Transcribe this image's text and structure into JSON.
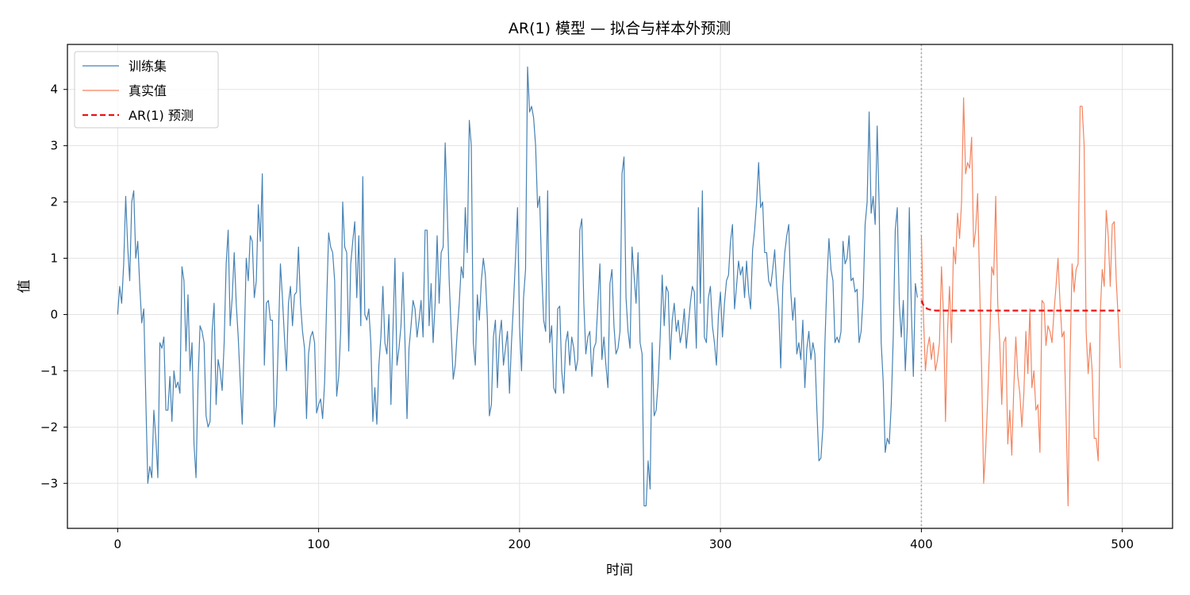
{
  "chart_data": {
    "type": "line",
    "title": "AR(1) 模型 — 拟合与样本外预测",
    "xlabel": "时间",
    "ylabel": "值",
    "xlim": [
      -25,
      525
    ],
    "ylim": [
      -3.8,
      4.8
    ],
    "xticks": [
      0,
      100,
      200,
      300,
      400,
      500
    ],
    "yticks": [
      -3,
      -2,
      -1,
      0,
      1,
      2,
      3,
      4
    ],
    "grid": true,
    "legend_position": "top-left",
    "split_line_x": 400,
    "series": [
      {
        "name": "训练集",
        "color": "#4682b4",
        "style": "solid",
        "x_start": 0,
        "values": [
          0.0,
          0.5,
          0.2,
          0.9,
          2.1,
          1.2,
          0.6,
          2.0,
          2.2,
          1.0,
          1.3,
          0.5,
          -0.15,
          0.1,
          -1.5,
          -3.0,
          -2.7,
          -2.9,
          -1.7,
          -2.2,
          -2.9,
          -0.5,
          -0.6,
          -0.4,
          -1.7,
          -1.7,
          -1.1,
          -1.9,
          -1.0,
          -1.3,
          -1.2,
          -1.4,
          0.85,
          0.6,
          -0.65,
          0.35,
          -1.0,
          -0.5,
          -2.3,
          -2.9,
          -1.2,
          -0.2,
          -0.3,
          -0.5,
          -1.8,
          -2.0,
          -1.9,
          -0.3,
          0.2,
          -1.6,
          -0.8,
          -1.0,
          -1.35,
          -0.5,
          0.9,
          1.5,
          -0.2,
          0.3,
          1.1,
          0.2,
          -0.4,
          -1.2,
          -1.95,
          -0.5,
          1.0,
          0.6,
          1.4,
          1.3,
          0.3,
          0.6,
          1.95,
          1.3,
          2.5,
          -0.9,
          0.2,
          0.25,
          -0.1,
          -0.1,
          -2.0,
          -1.6,
          -0.4,
          0.9,
          0.3,
          -0.4,
          -1.0,
          0.2,
          0.5,
          -0.2,
          0.35,
          0.4,
          1.2,
          0.2,
          -0.3,
          -0.6,
          -1.85,
          -0.7,
          -0.4,
          -0.3,
          -0.5,
          -1.75,
          -1.6,
          -1.5,
          -1.85,
          -1.2,
          0.2,
          1.45,
          1.2,
          1.1,
          0.6,
          -1.45,
          -1.1,
          -0.3,
          2.0,
          1.2,
          1.1,
          -0.65,
          0.9,
          1.3,
          1.65,
          0.3,
          1.4,
          -0.2,
          2.45,
          0.0,
          -0.1,
          0.1,
          -0.5,
          -1.9,
          -1.3,
          -1.95,
          -0.9,
          -0.4,
          0.5,
          -0.5,
          -0.7,
          0.0,
          -1.6,
          -0.3,
          1.0,
          -0.9,
          -0.6,
          -0.2,
          0.75,
          -0.5,
          -1.85,
          -0.6,
          -0.2,
          0.25,
          0.1,
          -0.4,
          -0.1,
          0.25,
          -0.4,
          1.5,
          1.5,
          -0.2,
          0.55,
          -0.5,
          0.2,
          1.4,
          0.2,
          1.1,
          1.2,
          3.05,
          1.9,
          0.6,
          -0.3,
          -1.15,
          -0.9,
          -0.3,
          0.2,
          0.85,
          0.65,
          1.9,
          1.1,
          3.45,
          3.0,
          -0.5,
          -0.9,
          0.35,
          -0.1,
          0.6,
          1.0,
          0.7,
          -0.1,
          -1.8,
          -1.6,
          -0.4,
          -0.1,
          -1.3,
          -0.4,
          -0.1,
          -0.9,
          -0.6,
          -0.3,
          -1.4,
          -0.5,
          0.2,
          1.0,
          1.9,
          -0.2,
          -1.0,
          0.3,
          0.8,
          4.4,
          3.6,
          3.7,
          3.5,
          3.0,
          1.9,
          2.1,
          0.8,
          -0.1,
          -0.3,
          2.2,
          -0.5,
          -0.2,
          -1.3,
          -1.4,
          0.1,
          0.15,
          -1.0,
          -1.4,
          -0.5,
          -0.3,
          -0.9,
          -0.4,
          -0.6,
          -1.0,
          -0.8,
          1.5,
          1.7,
          0.2,
          -0.7,
          -0.4,
          -0.3,
          -1.1,
          -0.6,
          -0.5,
          0.2,
          0.9,
          -0.8,
          -0.4,
          -0.9,
          -1.3,
          0.55,
          0.8,
          -0.2,
          -0.7,
          -0.6,
          -0.3,
          2.5,
          2.8,
          0.3,
          -0.3,
          -0.6,
          1.2,
          0.7,
          0.2,
          1.1,
          -0.5,
          -0.7,
          -3.4,
          -3.4,
          -2.6,
          -3.1,
          -0.5,
          -1.8,
          -1.7,
          -1.2,
          -0.4,
          0.7,
          -0.2,
          0.5,
          0.4,
          -0.8,
          -0.1,
          0.2,
          -0.3,
          -0.1,
          -0.5,
          -0.3,
          0.1,
          -0.6,
          -0.2,
          0.2,
          0.5,
          0.4,
          -0.6,
          1.9,
          0.2,
          2.2,
          -0.4,
          -0.5,
          0.3,
          0.5,
          -0.2,
          -0.5,
          -0.9,
          0.0,
          0.4,
          -0.4,
          0.2,
          0.6,
          0.7,
          1.3,
          1.6,
          0.1,
          0.5,
          0.95,
          0.7,
          0.85,
          0.3,
          0.95,
          0.4,
          0.1,
          1.15,
          1.5,
          2.0,
          2.7,
          1.9,
          2.0,
          1.1,
          1.1,
          0.6,
          0.5,
          0.8,
          1.15,
          0.5,
          0.1,
          -0.95,
          0.5,
          1.1,
          1.4,
          1.6,
          0.4,
          -0.1,
          0.3,
          -0.7,
          -0.5,
          -0.8,
          -0.1,
          -1.3,
          -0.6,
          -0.3,
          -0.8,
          -0.5,
          -0.7,
          -1.7,
          -2.6,
          -2.55,
          -2.0,
          -0.5,
          0.6,
          1.35,
          0.8,
          0.6,
          -0.5,
          -0.4,
          -0.5,
          -0.3,
          1.3,
          0.9,
          1.0,
          1.4,
          0.6,
          0.65,
          0.4,
          0.45,
          -0.5,
          -0.3,
          0.3,
          1.6,
          2.0,
          3.6,
          1.8,
          2.1,
          1.6,
          3.35,
          1.9,
          -0.5,
          -1.2,
          -2.45,
          -2.2,
          -2.3,
          -1.6,
          -0.4,
          1.5,
          1.9,
          0.2,
          -0.4,
          0.25,
          -1.0,
          -0.2,
          1.9,
          0.1,
          -1.1,
          0.55,
          0.3
        ]
      },
      {
        "name": "真实值",
        "color": "#f4845f",
        "style": "solid",
        "x_start": 400,
        "values": [
          1.4,
          0.0,
          -1.0,
          -0.6,
          -0.4,
          -0.8,
          -0.5,
          -1.0,
          -0.8,
          -0.5,
          0.85,
          0.0,
          -1.9,
          -0.3,
          0.5,
          -0.5,
          1.2,
          0.9,
          1.8,
          1.35,
          2.0,
          3.85,
          2.5,
          2.7,
          2.6,
          3.15,
          1.2,
          1.5,
          2.15,
          0.5,
          -1.0,
          -3.0,
          -2.4,
          -1.5,
          -0.5,
          0.85,
          0.7,
          2.1,
          0.2,
          -0.5,
          -1.6,
          -0.5,
          -0.4,
          -2.3,
          -1.7,
          -2.5,
          -1.3,
          -0.4,
          -1.1,
          -1.4,
          -2.0,
          -1.4,
          -0.3,
          -1.05,
          0.1,
          -1.3,
          -1.0,
          -1.7,
          -1.6,
          -2.45,
          0.25,
          0.2,
          -0.55,
          -0.2,
          -0.3,
          -0.5,
          0.05,
          0.5,
          1.0,
          0.2,
          -0.4,
          -0.3,
          -1.8,
          -3.4,
          -0.8,
          0.9,
          0.4,
          0.8,
          0.9,
          3.7,
          3.7,
          3.0,
          -0.3,
          -1.05,
          -0.5,
          -1.0,
          -2.2,
          -2.2,
          -2.6,
          0.0,
          0.8,
          0.5,
          1.85,
          1.4,
          0.5,
          1.6,
          1.65,
          0.6,
          -0.1,
          -0.95
        ]
      },
      {
        "name": "AR(1) 预测",
        "color": "#ee1111",
        "style": "dashed",
        "x_start": 400,
        "values": [
          0.25,
          0.17,
          0.13,
          0.1,
          0.09,
          0.08,
          0.08,
          0.07,
          0.07,
          0.07,
          0.07,
          0.07,
          0.07,
          0.07,
          0.07,
          0.07,
          0.07,
          0.07,
          0.07,
          0.07,
          0.07,
          0.07,
          0.07,
          0.07,
          0.07,
          0.07,
          0.07,
          0.07,
          0.07,
          0.07,
          0.07,
          0.07,
          0.07,
          0.07,
          0.07,
          0.07,
          0.07,
          0.07,
          0.07,
          0.07,
          0.07,
          0.07,
          0.07,
          0.07,
          0.07,
          0.07,
          0.07,
          0.07,
          0.07,
          0.07,
          0.07,
          0.07,
          0.07,
          0.07,
          0.07,
          0.07,
          0.07,
          0.07,
          0.07,
          0.07,
          0.07,
          0.07,
          0.07,
          0.07,
          0.07,
          0.07,
          0.07,
          0.07,
          0.07,
          0.07,
          0.07,
          0.07,
          0.07,
          0.07,
          0.07,
          0.07,
          0.07,
          0.07,
          0.07,
          0.07,
          0.07,
          0.07,
          0.07,
          0.07,
          0.07,
          0.07,
          0.07,
          0.07,
          0.07,
          0.07,
          0.07,
          0.07,
          0.07,
          0.07,
          0.07,
          0.07,
          0.07,
          0.07,
          0.07,
          0.07
        ]
      }
    ]
  }
}
